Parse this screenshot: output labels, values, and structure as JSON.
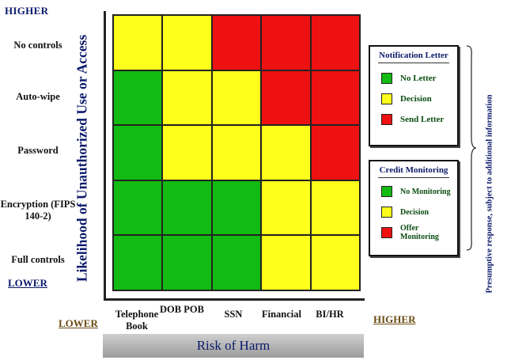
{
  "y_axis": {
    "top_label": "HIGHER",
    "bottom_label": "LOWER",
    "title": "Likelihood of Unauthorized Use or Access",
    "rows": [
      "No controls",
      "Auto-wipe",
      "Password",
      "Encryption (FIPS 140-2)",
      "Full controls"
    ]
  },
  "x_axis": {
    "low_label": "LOWER",
    "high_label": "HIGHER",
    "title": "Risk of Harm",
    "columns": [
      "Telephone Book",
      "DOB POB",
      "SSN",
      "Financial",
      "BI/HR"
    ]
  },
  "matrix": [
    [
      "yellow",
      "yellow",
      "red",
      "red",
      "red"
    ],
    [
      "green",
      "yellow",
      "yellow",
      "red",
      "red"
    ],
    [
      "green",
      "yellow",
      "yellow",
      "yellow",
      "red"
    ],
    [
      "green",
      "green",
      "green",
      "yellow",
      "yellow"
    ],
    [
      "green",
      "green",
      "green",
      "yellow",
      "yellow"
    ]
  ],
  "colors": {
    "red": "#ee1111",
    "yellow": "#ffff1c",
    "green": "#11bb11"
  },
  "legend_notification": {
    "title": "Notification Letter",
    "items": [
      {
        "color": "green",
        "label": "No Letter"
      },
      {
        "color": "yellow",
        "label": "Decision"
      },
      {
        "color": "red",
        "label": "Send Letter"
      }
    ]
  },
  "legend_credit": {
    "title": "Credit Monitoring",
    "items": [
      {
        "color": "green",
        "label": "No Monitoring"
      },
      {
        "color": "yellow",
        "label": "Decision"
      },
      {
        "color": "red",
        "label": "Offer Monitoring"
      }
    ]
  },
  "presumptive_note": "Presumptive response, subject to additional information"
}
